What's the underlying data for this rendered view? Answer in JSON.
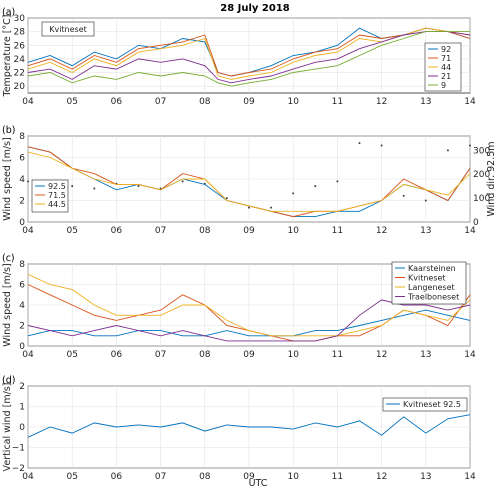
{
  "figure": {
    "title": "28 July 2018",
    "xlabel": "UTC"
  },
  "x_ticks": [
    "04",
    "05",
    "06",
    "07",
    "08",
    "09",
    "10",
    "11",
    "12",
    "13",
    "14"
  ],
  "chart_data": [
    {
      "type": "line",
      "panel_label": "(a)",
      "annotation": "Kvitneset",
      "ylabel": "Temperature [°C]",
      "ylim": [
        19,
        30
      ],
      "yticks": [
        20,
        22,
        24,
        26,
        28,
        30
      ],
      "grid": true,
      "legend": "right",
      "x_hours": [
        4,
        4.5,
        5,
        5.5,
        6,
        6.5,
        7,
        7.5,
        8,
        8.3,
        8.6,
        9,
        9.5,
        10,
        10.5,
        11,
        11.5,
        12,
        12.5,
        13,
        13.5,
        14
      ],
      "series": [
        {
          "name": "92",
          "color": "#0072BD",
          "values": [
            23.5,
            24.5,
            23,
            25,
            24,
            26,
            25.5,
            27,
            26.5,
            22,
            21.5,
            22,
            23,
            24.5,
            25,
            26,
            28.5,
            27,
            27.5,
            28.5,
            28,
            27
          ]
        },
        {
          "name": "71",
          "color": "#D95319",
          "values": [
            23,
            24,
            22.5,
            24.5,
            23.5,
            25.5,
            26,
            26.5,
            27.5,
            22,
            21.5,
            22,
            22.5,
            24,
            25,
            25.5,
            27.5,
            27,
            27.5,
            28.5,
            28,
            27
          ]
        },
        {
          "name": "44",
          "color": "#EDB120",
          "values": [
            22.5,
            23.5,
            22,
            24,
            23,
            25,
            25.5,
            26,
            27,
            21.5,
            21,
            21.5,
            22,
            23.5,
            24.5,
            25,
            27,
            26.5,
            27.5,
            28.5,
            28,
            27.5
          ]
        },
        {
          "name": "21",
          "color": "#7E2F8E",
          "values": [
            22,
            22.5,
            21,
            23,
            22.5,
            24,
            23.5,
            24,
            23,
            21,
            20.5,
            21,
            21.5,
            22.5,
            23.5,
            24,
            25.5,
            26.5,
            27.5,
            28,
            28,
            27.5
          ]
        },
        {
          "name": "9",
          "color": "#77AC30",
          "values": [
            21.5,
            22,
            20.5,
            21.5,
            21,
            22,
            21.5,
            22,
            21.5,
            20.5,
            20,
            20.5,
            21,
            22,
            22.5,
            23,
            24.5,
            26,
            27,
            28,
            28,
            28
          ]
        }
      ]
    },
    {
      "type": "line",
      "panel_label": "(b)",
      "ylabel": "Wind speed [m/s]",
      "y2label": "Wind dir. 92.5m",
      "ylim": [
        0,
        8
      ],
      "yticks": [
        0,
        2,
        4,
        6,
        8
      ],
      "y2lim": [
        0,
        360
      ],
      "y2ticks": [
        0,
        100,
        200,
        300
      ],
      "grid": true,
      "legend": "left",
      "x_hours": [
        4,
        4.5,
        5,
        5.5,
        6,
        6.5,
        7,
        7.5,
        8,
        8.5,
        9,
        9.5,
        10,
        10.5,
        11,
        11.5,
        12,
        12.5,
        13,
        13.5,
        14
      ],
      "series": [
        {
          "name": "92.5",
          "color": "#0072BD",
          "values": [
            7,
            6.5,
            5,
            4,
            3,
            3.5,
            3,
            4,
            3.5,
            2,
            1.5,
            1,
            0.5,
            0.5,
            1,
            1,
            2,
            3.5,
            3,
            2,
            5
          ]
        },
        {
          "name": "71.5",
          "color": "#D95319",
          "values": [
            7,
            6.5,
            5,
            4.5,
            3.5,
            3.5,
            3,
            4.5,
            4,
            2,
            1.5,
            1,
            0.5,
            1,
            1,
            1.5,
            2,
            4,
            3,
            2,
            5
          ]
        },
        {
          "name": "44.5",
          "color": "#EDB120",
          "values": [
            6.5,
            6,
            5,
            4,
            3.5,
            3.5,
            3,
            4,
            4,
            2,
            1.5,
            1,
            1,
            1,
            1,
            1.5,
            2,
            3.5,
            3,
            2.5,
            4.5
          ]
        }
      ],
      "scatter_series": {
        "name": "Wind dir. 92.5m",
        "color": "#404040",
        "x_hours": [
          4,
          4.5,
          5,
          5.5,
          6,
          6.5,
          7,
          7.5,
          8,
          8.5,
          9,
          9.5,
          10,
          10.5,
          11,
          11.5,
          12,
          12.5,
          13,
          13.5,
          14
        ],
        "values": [
          170,
          160,
          150,
          140,
          160,
          150,
          140,
          170,
          160,
          100,
          60,
          60,
          120,
          150,
          170,
          330,
          320,
          110,
          90,
          300,
          320
        ]
      }
    },
    {
      "type": "line",
      "panel_label": "(c)",
      "ylabel": "Wind speed [m/s]",
      "ylim": [
        0,
        8
      ],
      "yticks": [
        0,
        2,
        4,
        6,
        8
      ],
      "grid": true,
      "legend": "top-right",
      "x_hours": [
        4,
        4.5,
        5,
        5.5,
        6,
        6.5,
        7,
        7.5,
        8,
        8.5,
        9,
        9.5,
        10,
        10.5,
        11,
        11.5,
        12,
        12.5,
        13,
        13.5,
        14
      ],
      "series": [
        {
          "name": "Kaarsteinen",
          "color": "#0072BD",
          "values": [
            1,
            1.5,
            1.5,
            1,
            1,
            1.5,
            1.5,
            1,
            1,
            1.5,
            1,
            1,
            1,
            1.5,
            1.5,
            2,
            2.5,
            3,
            3.5,
            3,
            2.5
          ]
        },
        {
          "name": "Kvitneset",
          "color": "#D95319",
          "values": [
            6,
            5,
            4,
            3,
            2.5,
            3,
            3.5,
            5,
            4,
            2,
            1.5,
            1,
            0.5,
            0.5,
            1,
            1,
            2,
            3.5,
            3,
            2,
            5
          ]
        },
        {
          "name": "Langeneset",
          "color": "#EDB120",
          "values": [
            7,
            6,
            5.5,
            4,
            3,
            3,
            3,
            4,
            4,
            2.5,
            1.5,
            1,
            1,
            1,
            1,
            1.5,
            2,
            3.5,
            3,
            2.5,
            4.5
          ]
        },
        {
          "name": "Traelboneset",
          "color": "#7E2F8E",
          "values": [
            2,
            1.5,
            1,
            1.5,
            2,
            1.5,
            1,
            1.5,
            1,
            0.5,
            0.5,
            0.5,
            0.5,
            0.5,
            1,
            3,
            4.5,
            4,
            4,
            3.5,
            4
          ]
        }
      ]
    },
    {
      "type": "line",
      "panel_label": "(d)",
      "ylabel": "Vertical wind [m/s]",
      "ylim": [
        -2,
        2
      ],
      "yticks": [
        -2,
        -1,
        0,
        1,
        2
      ],
      "grid": true,
      "legend": "top-right",
      "x_hours": [
        4,
        4.5,
        5,
        5.5,
        6,
        6.5,
        7,
        7.5,
        8,
        8.5,
        9,
        9.5,
        10,
        10.5,
        11,
        11.5,
        12,
        12.5,
        13,
        13.5,
        14
      ],
      "series": [
        {
          "name": "Kvitneset 92.5",
          "color": "#0072BD",
          "values": [
            -0.5,
            0,
            -0.3,
            0.2,
            0,
            0.1,
            0,
            0.2,
            -0.2,
            0.1,
            0,
            0,
            -0.1,
            0.2,
            0,
            0.3,
            -0.4,
            0.5,
            -0.3,
            0.4,
            0.6
          ]
        }
      ]
    }
  ]
}
